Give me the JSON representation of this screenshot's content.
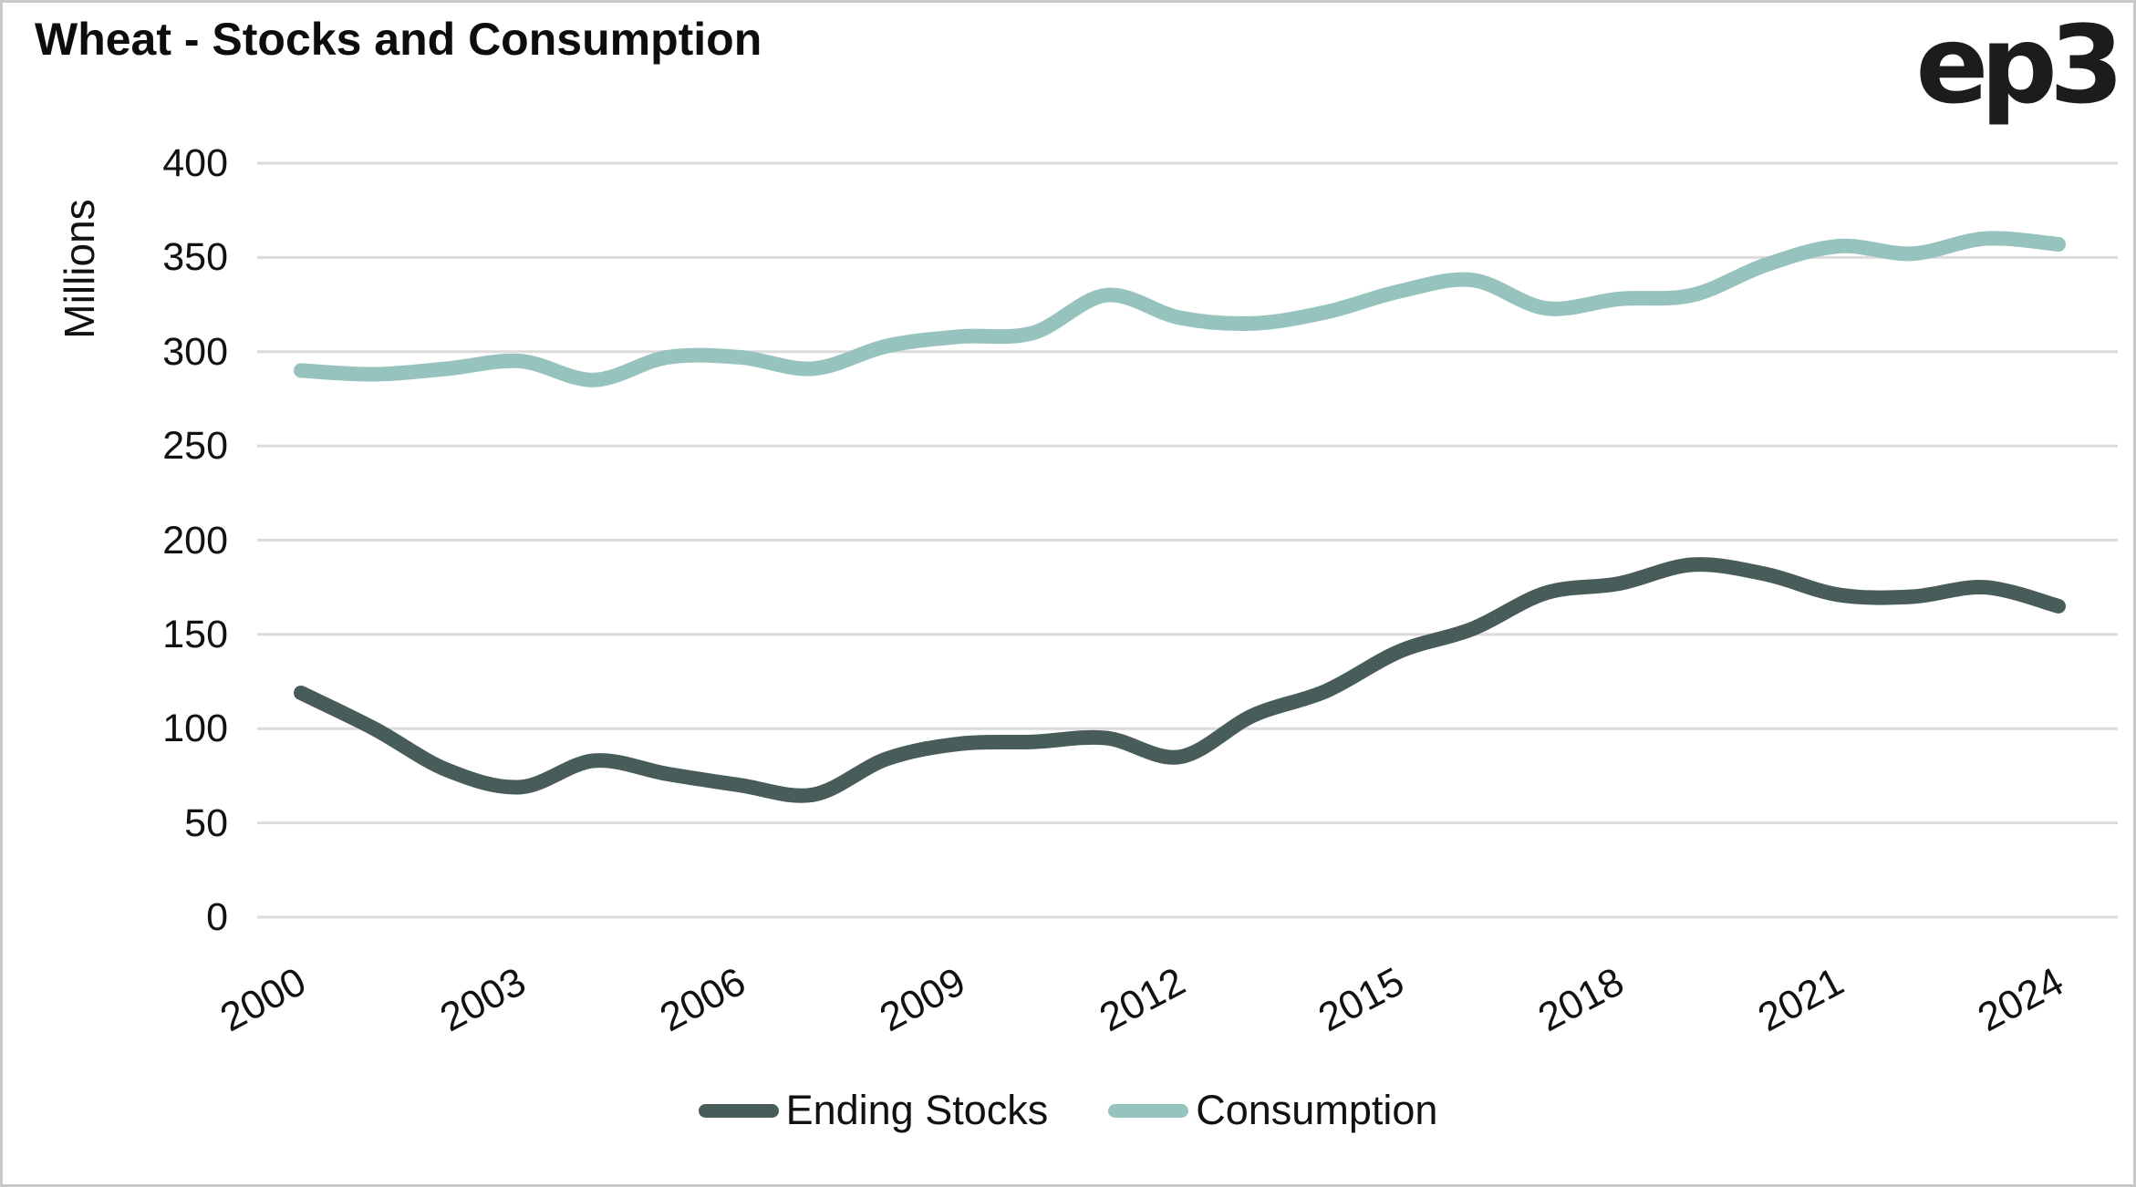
{
  "header": {
    "title": "Wheat - Stocks and Consumption",
    "logo": "ep3"
  },
  "axes": {
    "y": {
      "title": "Millions",
      "ticks": [
        0,
        50,
        100,
        150,
        200,
        250,
        300,
        350,
        400
      ]
    },
    "x": {
      "ticks": [
        2000,
        2003,
        2006,
        2009,
        2012,
        2015,
        2018,
        2021,
        2024
      ]
    }
  },
  "legend": [
    {
      "label": "Ending Stocks",
      "color": "#485C5A"
    },
    {
      "label": "Consumption",
      "color": "#96C3BD"
    }
  ],
  "colors": {
    "ending_stocks": "#485C5A",
    "consumption": "#96C3BD",
    "gridline": "#DBDBDB",
    "text": "#111111"
  },
  "chart_data": {
    "type": "line",
    "title": "Wheat - Stocks and Consumption",
    "xlabel": "",
    "ylabel": "Millions",
    "ylim": [
      0,
      400
    ],
    "xlim": [
      2000,
      2024
    ],
    "grid": "horizontal",
    "legend_position": "bottom",
    "smooth": true,
    "x": [
      2000,
      2001,
      2002,
      2003,
      2004,
      2005,
      2006,
      2007,
      2008,
      2009,
      2010,
      2011,
      2012,
      2013,
      2014,
      2015,
      2016,
      2017,
      2018,
      2019,
      2020,
      2021,
      2022,
      2023,
      2024
    ],
    "series": [
      {
        "name": "Ending Stocks",
        "color": "#485C5A",
        "values": [
          119,
          100,
          78,
          69,
          83,
          76,
          70,
          65,
          84,
          92,
          93,
          95,
          85,
          107,
          120,
          141,
          153,
          172,
          177,
          187,
          182,
          171,
          170,
          175,
          165
        ]
      },
      {
        "name": "Consumption",
        "color": "#96C3BD",
        "values": [
          290,
          288,
          291,
          295,
          285,
          297,
          297,
          291,
          303,
          308,
          310,
          330,
          318,
          315,
          321,
          332,
          338,
          323,
          328,
          330,
          346,
          356,
          352,
          360,
          357
        ]
      }
    ]
  }
}
